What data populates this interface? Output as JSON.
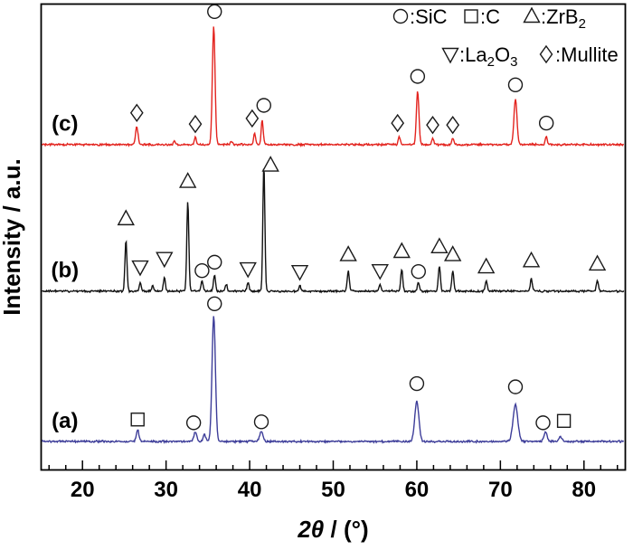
{
  "chart_data": {
    "type": "line",
    "title": "",
    "xlabel": "2θ / (°)",
    "ylabel": "Intensity / a.u.",
    "xlim": [
      15,
      85
    ],
    "xticks": [
      20,
      30,
      40,
      50,
      60,
      70,
      80
    ],
    "minor_tick_step": 2,
    "grid": false,
    "legend_position": "top-right",
    "legend": {
      "rows": [
        [
          {
            "symbol": "circle",
            "label": "SiC"
          },
          {
            "symbol": "square",
            "label": "C"
          },
          {
            "symbol": "triangle-up",
            "label": "ZrB_2"
          }
        ],
        [
          {
            "symbol": "triangle-down",
            "label": "La_2O_3"
          },
          {
            "symbol": "diamond",
            "label": "Mullite"
          }
        ]
      ]
    },
    "phase_symbols": {
      "circle": "SiC",
      "square": "C",
      "triangle-up": "ZrB2",
      "triangle-down": "La2O3",
      "diamond": "Mullite"
    },
    "series": [
      {
        "name": "(a)",
        "color": "#3d3d99",
        "baseline": 0.062,
        "peaks": [
          [
            26.6,
            0.025,
            0.15
          ],
          [
            33.5,
            0.02,
            0.18
          ],
          [
            34.6,
            0.015,
            0.15
          ],
          [
            35.7,
            0.27,
            0.2
          ],
          [
            41.4,
            0.022,
            0.2
          ],
          [
            60.0,
            0.085,
            0.25
          ],
          [
            71.8,
            0.08,
            0.28
          ],
          [
            75.4,
            0.02,
            0.2
          ],
          [
            77.2,
            0.01,
            0.18
          ]
        ],
        "markers": [
          [
            "square",
            26.6,
            0.047
          ],
          [
            "circle",
            33.3,
            0.04
          ],
          [
            "circle",
            35.8,
            0.295
          ],
          [
            "circle",
            41.4,
            0.042
          ],
          [
            "circle",
            60.0,
            0.124
          ],
          [
            "circle",
            71.8,
            0.117
          ],
          [
            "circle",
            75.1,
            0.04
          ],
          [
            "square",
            77.6,
            0.044
          ]
        ]
      },
      {
        "name": "(b)",
        "color": "#121212",
        "baseline": 0.384,
        "peaks": [
          [
            25.2,
            0.108
          ],
          [
            26.9,
            0.019
          ],
          [
            28.4,
            0.012
          ],
          [
            29.8,
            0.029
          ],
          [
            32.6,
            0.194
          ],
          [
            34.3,
            0.023
          ],
          [
            35.8,
            0.035
          ],
          [
            37.2,
            0.015
          ],
          [
            39.8,
            0.019
          ],
          [
            41.7,
            0.269
          ],
          [
            46.0,
            0.012
          ],
          [
            51.8,
            0.043
          ],
          [
            55.6,
            0.014
          ],
          [
            58.2,
            0.048
          ],
          [
            60.2,
            0.019
          ],
          [
            62.7,
            0.054
          ],
          [
            64.3,
            0.043
          ],
          [
            68.3,
            0.023
          ],
          [
            73.7,
            0.027
          ],
          [
            81.6,
            0.023
          ]
        ],
        "markers": [
          [
            "triangle-up",
            25.2,
            0.155
          ],
          [
            "triangle-down",
            26.9,
            0.052
          ],
          [
            "triangle-down",
            29.8,
            0.07
          ],
          [
            "triangle-up",
            32.6,
            0.235
          ],
          [
            "circle",
            34.3,
            0.044
          ],
          [
            "circle",
            35.8,
            0.062
          ],
          [
            "triangle-down",
            39.8,
            0.048
          ],
          [
            "triangle-up",
            42.5,
            0.27
          ],
          [
            "triangle-down",
            46.0,
            0.042
          ],
          [
            "triangle-up",
            51.8,
            0.078
          ],
          [
            "triangle-down",
            55.6,
            0.044
          ],
          [
            "triangle-up",
            58.2,
            0.085
          ],
          [
            "circle",
            60.2,
            0.042
          ],
          [
            "triangle-up",
            62.7,
            0.095
          ],
          [
            "triangle-up",
            64.3,
            0.078
          ],
          [
            "triangle-up",
            68.3,
            0.052
          ],
          [
            "triangle-up",
            73.7,
            0.065
          ],
          [
            "triangle-up",
            81.6,
            0.058
          ]
        ]
      },
      {
        "name": "(c)",
        "color": "#e3241f",
        "baseline": 0.698,
        "peaks": [
          [
            26.5,
            0.038,
            0.15
          ],
          [
            31.0,
            0.008
          ],
          [
            33.5,
            0.016
          ],
          [
            35.7,
            0.255,
            0.16
          ],
          [
            37.8,
            0.008
          ],
          [
            40.6,
            0.025
          ],
          [
            41.5,
            0.052
          ],
          [
            57.9,
            0.018
          ],
          [
            60.1,
            0.115,
            0.15
          ],
          [
            61.9,
            0.014
          ],
          [
            64.3,
            0.014
          ],
          [
            71.8,
            0.097,
            0.18
          ],
          [
            75.5,
            0.018
          ]
        ],
        "markers": [
          [
            "diamond",
            26.5,
            0.068
          ],
          [
            "diamond",
            33.5,
            0.044
          ],
          [
            "circle",
            35.8,
            0.285
          ],
          [
            "diamond",
            40.3,
            0.056
          ],
          [
            "circle",
            41.7,
            0.084
          ],
          [
            "diamond",
            57.7,
            0.046
          ],
          [
            "circle",
            60.1,
            0.146
          ],
          [
            "diamond",
            61.9,
            0.042
          ],
          [
            "diamond",
            64.3,
            0.042
          ],
          [
            "circle",
            71.8,
            0.128
          ],
          [
            "circle",
            75.5,
            0.046
          ]
        ]
      }
    ]
  }
}
